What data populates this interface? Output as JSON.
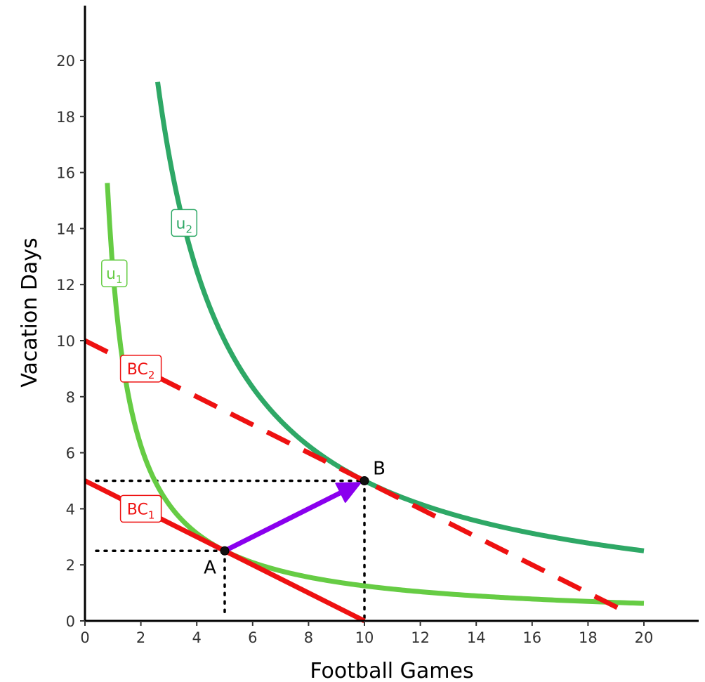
{
  "chart_data": {
    "type": "line",
    "xlabel": "Football Games",
    "ylabel": "Vacation Days",
    "xlim": [
      0,
      22
    ],
    "ylim": [
      0,
      22
    ],
    "xticks": [
      0,
      2,
      4,
      6,
      8,
      10,
      12,
      14,
      16,
      18,
      20
    ],
    "yticks": [
      0,
      2,
      4,
      6,
      8,
      10,
      12,
      14,
      16,
      18,
      20
    ],
    "grid": false,
    "colors": {
      "u1": "#66cc44",
      "u2": "#2ea866",
      "budget": "#ee1111",
      "arrow": "#8a00ee",
      "guide": "#000000"
    },
    "budget_constraints": [
      {
        "name": "BC",
        "sub": "1",
        "style": "solid",
        "x": [
          0,
          10
        ],
        "y": [
          5,
          0
        ]
      },
      {
        "name": "BC",
        "sub": "2",
        "style": "dashed",
        "x": [
          0,
          19.2
        ],
        "y": [
          10,
          0.4
        ]
      }
    ],
    "indifference_curves": [
      {
        "name": "u",
        "sub": "1",
        "k": 12.5,
        "x_start": 0.8,
        "x_end": 20
      },
      {
        "name": "u",
        "sub": "2",
        "k": 50,
        "x_start": 2.6,
        "x_end": 20
      }
    ],
    "points": [
      {
        "label": "A",
        "x": 5,
        "y": 2.5
      },
      {
        "label": "B",
        "x": 10,
        "y": 5
      }
    ],
    "arrow": {
      "from": "A",
      "to": "B"
    }
  }
}
